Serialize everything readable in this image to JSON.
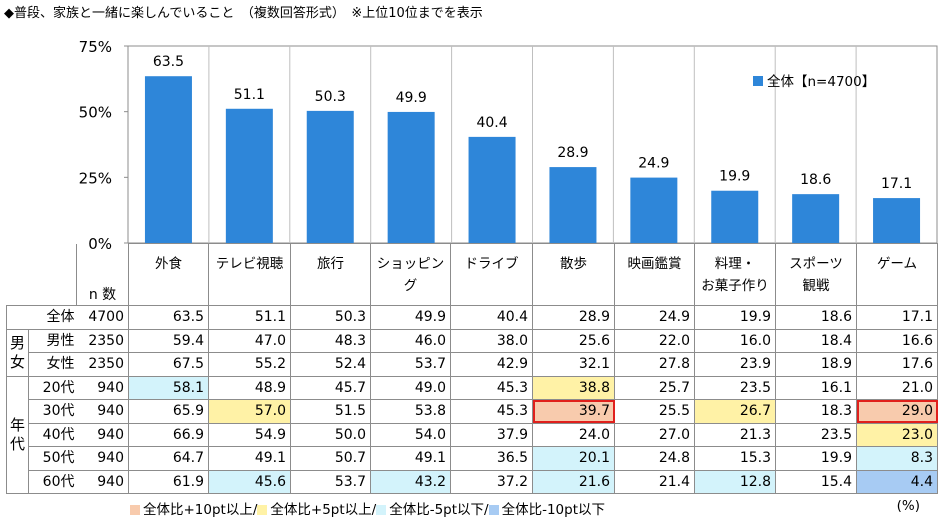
{
  "title": "◆普段、家族と一緒に楽しんでいること　（複数回答形式）　※上位10位までを表示",
  "chart_data": {
    "type": "bar",
    "categories": [
      "外食",
      "テレビ視聴",
      "旅行",
      "ショッピング",
      "ドライブ",
      "散歩",
      "映画鑑賞",
      "料理・お菓子作り",
      "スポーツ観戦",
      "ゲーム"
    ],
    "series": [
      {
        "name": "全体【n=4700】",
        "values": [
          63.5,
          51.1,
          50.3,
          49.9,
          40.4,
          28.9,
          24.9,
          19.9,
          18.6,
          17.1
        ],
        "color": "#2e86d9"
      }
    ],
    "yticks": [
      "0%",
      "25%",
      "50%",
      "75%"
    ],
    "ylim": [
      0,
      75
    ],
    "legend_position": "top-right"
  },
  "table": {
    "headers": [
      "外食",
      "テレビ視聴",
      "旅行",
      "ショッピング",
      "ドライブ",
      "散歩",
      "映画鑑賞",
      "料理・\nお菓子作り",
      "スポーツ\n観戦",
      "ゲーム"
    ],
    "n_label": "n 数",
    "groups": {
      "gender": "男\n女",
      "age": "年\n代"
    },
    "rows": [
      {
        "label": "全体",
        "n": "4700",
        "values": [
          "63.5",
          "51.1",
          "50.3",
          "49.9",
          "40.4",
          "28.9",
          "24.9",
          "19.9",
          "18.6",
          "17.1"
        ],
        "hl": [
          "",
          "",
          "",
          "",
          "",
          "",
          "",
          "",
          "",
          ""
        ]
      },
      {
        "label": "男性",
        "n": "2350",
        "values": [
          "59.4",
          "47.0",
          "48.3",
          "46.0",
          "38.0",
          "25.6",
          "22.0",
          "16.0",
          "18.4",
          "16.6"
        ],
        "hl": [
          "",
          "",
          "",
          "",
          "",
          "",
          "",
          "",
          "",
          ""
        ]
      },
      {
        "label": "女性",
        "n": "2350",
        "values": [
          "67.5",
          "55.2",
          "52.4",
          "53.7",
          "42.9",
          "32.1",
          "27.8",
          "23.9",
          "18.9",
          "17.6"
        ],
        "hl": [
          "",
          "",
          "",
          "",
          "",
          "",
          "",
          "",
          "",
          ""
        ]
      },
      {
        "label": "20代",
        "n": "940",
        "values": [
          "58.1",
          "48.9",
          "45.7",
          "49.0",
          "45.3",
          "38.8",
          "25.7",
          "23.5",
          "16.1",
          "21.0"
        ],
        "hl": [
          "lo5",
          "",
          "",
          "",
          "",
          "hi5",
          "",
          "",
          "",
          ""
        ]
      },
      {
        "label": "30代",
        "n": "940",
        "values": [
          "65.9",
          "57.0",
          "51.5",
          "53.8",
          "45.3",
          "39.7",
          "25.5",
          "26.7",
          "18.3",
          "29.0"
        ],
        "hl": [
          "",
          "hi5",
          "",
          "",
          "",
          "hi10 box",
          "",
          "hi5",
          "",
          "hi10 box"
        ]
      },
      {
        "label": "40代",
        "n": "940",
        "values": [
          "66.9",
          "54.9",
          "50.0",
          "54.0",
          "37.9",
          "24.0",
          "27.0",
          "21.3",
          "23.5",
          "23.0"
        ],
        "hl": [
          "",
          "",
          "",
          "",
          "",
          "",
          "",
          "",
          "",
          "hi5"
        ]
      },
      {
        "label": "50代",
        "n": "940",
        "values": [
          "64.7",
          "49.1",
          "50.7",
          "49.1",
          "36.5",
          "20.1",
          "24.8",
          "15.3",
          "19.9",
          "8.3"
        ],
        "hl": [
          "",
          "",
          "",
          "",
          "",
          "lo5",
          "",
          "",
          "",
          "lo5"
        ]
      },
      {
        "label": "60代",
        "n": "940",
        "values": [
          "61.9",
          "45.6",
          "53.7",
          "43.2",
          "37.2",
          "21.6",
          "21.4",
          "12.8",
          "15.4",
          "4.4"
        ],
        "hl": [
          "",
          "lo5",
          "",
          "lo5",
          "",
          "lo5",
          "",
          "lo5",
          "",
          "lo10"
        ]
      }
    ]
  },
  "footer_legend": [
    {
      "label": "全体比+10pt以上/",
      "color": "#f8cbad"
    },
    {
      "label": "全体比+5pt以上/",
      "color": "#fff2a6"
    },
    {
      "label": "全体比-5pt以下/",
      "color": "#d3f3fb"
    },
    {
      "label": "全体比-10pt以下",
      "color": "#a7cbf3"
    }
  ],
  "unit": "(%)"
}
